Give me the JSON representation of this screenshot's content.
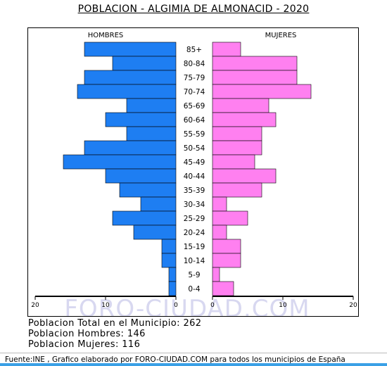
{
  "title": "POBLACION - ALGIMIA DE ALMONACID - 2020",
  "colors": {
    "male": "#1e7ef2",
    "female": "#ff80f0",
    "watermark": "#d8d8f0"
  },
  "watermark": "FORO-CIUDAD.COM",
  "chart_data": {
    "type": "bar",
    "orientation": "horizontal",
    "subtype": "population-pyramid",
    "categories": [
      "85+",
      "80-84",
      "75-79",
      "70-74",
      "65-69",
      "60-64",
      "55-59",
      "50-54",
      "45-49",
      "40-44",
      "35-39",
      "30-34",
      "25-29",
      "20-24",
      "15-19",
      "10-14",
      "5-9",
      "0-4"
    ],
    "series": [
      {
        "name": "HOMBRES",
        "values": [
          13,
          9,
          13,
          14,
          7,
          10,
          7,
          13,
          16,
          10,
          8,
          5,
          9,
          6,
          2,
          2,
          1,
          1
        ]
      },
      {
        "name": "MUJERES",
        "values": [
          4,
          12,
          12,
          14,
          8,
          9,
          7,
          7,
          6,
          9,
          7,
          2,
          5,
          2,
          4,
          4,
          1,
          3
        ]
      }
    ],
    "xlim": [
      -20,
      20
    ],
    "ticks": [
      "20",
      "10",
      "0",
      "10",
      "20"
    ],
    "ticks_values": [
      -20,
      -10,
      0,
      10,
      20
    ]
  },
  "stats": {
    "total": "Poblacion Total en el Municipio: 262",
    "hombres": "Poblacion Hombres: 146",
    "mujeres": "Poblacion Mujeres: 116"
  },
  "footer": "Fuente:INE , Grafico elaborado por FORO-CIUDAD.COM para todos los municipios de España"
}
